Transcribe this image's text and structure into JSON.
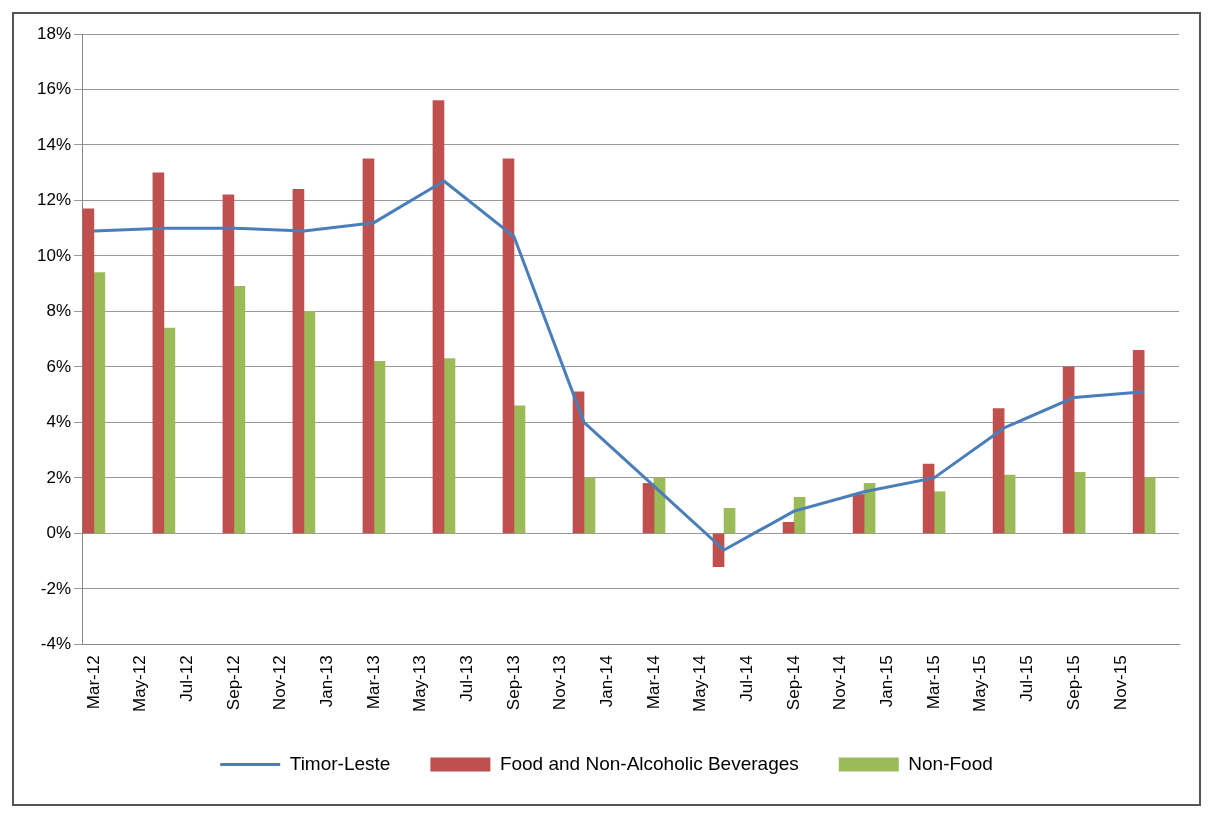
{
  "chart_data": {
    "type": "bar",
    "x": [
      "2012-03",
      "2012-06",
      "2012-09",
      "2012-12",
      "2013-03",
      "2013-06",
      "2013-09",
      "2013-12",
      "2014-03",
      "2014-06",
      "2014-09",
      "2014-12",
      "2015-03",
      "2015-06",
      "2015-09",
      "2015-12"
    ],
    "series": [
      {
        "name": "Food and Non-Alcoholic Beverages",
        "color": "#c0504d",
        "values": [
          11.7,
          13.0,
          12.2,
          12.4,
          13.5,
          15.6,
          13.5,
          5.1,
          1.8,
          -1.2,
          0.4,
          1.4,
          2.5,
          4.5,
          6.0,
          6.6
        ]
      },
      {
        "name": "Non-Food",
        "color": "#9bbb59",
        "values": [
          9.4,
          7.4,
          8.9,
          8.0,
          6.2,
          6.3,
          4.6,
          2.0,
          2.0,
          0.9,
          1.3,
          1.8,
          1.5,
          2.1,
          2.2,
          2.0
        ]
      },
      {
        "name": "Timor-Leste",
        "type": "line",
        "color": "#4a7ebb",
        "values": [
          10.9,
          11.0,
          11.0,
          10.9,
          11.2,
          12.7,
          10.7,
          4.0,
          1.7,
          -0.6,
          0.8,
          1.5,
          2.0,
          3.8,
          4.9,
          5.1
        ]
      }
    ],
    "xlim": [
      "2012-02-16",
      "2016-01-16"
    ],
    "xticks": [
      {
        "value": "2012-03",
        "label": "Mar-12"
      },
      {
        "value": "2012-05",
        "label": "May-12"
      },
      {
        "value": "2012-07",
        "label": "Jul-12"
      },
      {
        "value": "2012-09",
        "label": "Sep-12"
      },
      {
        "value": "2012-11",
        "label": "Nov-12"
      },
      {
        "value": "2013-01",
        "label": "Jan-13"
      },
      {
        "value": "2013-03",
        "label": "Mar-13"
      },
      {
        "value": "2013-05",
        "label": "May-13"
      },
      {
        "value": "2013-07",
        "label": "Jul-13"
      },
      {
        "value": "2013-09",
        "label": "Sep-13"
      },
      {
        "value": "2013-11",
        "label": "Nov-13"
      },
      {
        "value": "2014-01",
        "label": "Jan-14"
      },
      {
        "value": "2014-03",
        "label": "Mar-14"
      },
      {
        "value": "2014-05",
        "label": "May-14"
      },
      {
        "value": "2014-07",
        "label": "Jul-14"
      },
      {
        "value": "2014-09",
        "label": "Sep-14"
      },
      {
        "value": "2014-11",
        "label": "Nov-14"
      },
      {
        "value": "2015-01",
        "label": "Jan-15"
      },
      {
        "value": "2015-03",
        "label": "Mar-15"
      },
      {
        "value": "2015-05",
        "label": "May-15"
      },
      {
        "value": "2015-07",
        "label": "Jul-15"
      },
      {
        "value": "2015-09",
        "label": "Sep-15"
      },
      {
        "value": "2015-11",
        "label": "Nov-15"
      }
    ],
    "ylim": [
      -4,
      18
    ],
    "yticks": [
      {
        "value": -4,
        "label": "-4%"
      },
      {
        "value": -2,
        "label": "-2%"
      },
      {
        "value": 0,
        "label": "0%"
      },
      {
        "value": 2,
        "label": "2%"
      },
      {
        "value": 4,
        "label": "4%"
      },
      {
        "value": 6,
        "label": "6%"
      },
      {
        "value": 8,
        "label": "8%"
      },
      {
        "value": 10,
        "label": "10%"
      },
      {
        "value": 12,
        "label": "12%"
      },
      {
        "value": 14,
        "label": "14%"
      },
      {
        "value": 16,
        "label": "16%"
      },
      {
        "value": 18,
        "label": "18%"
      }
    ],
    "grid": "y",
    "legend": "bottom",
    "marker": "none",
    "line_style": "solid"
  }
}
